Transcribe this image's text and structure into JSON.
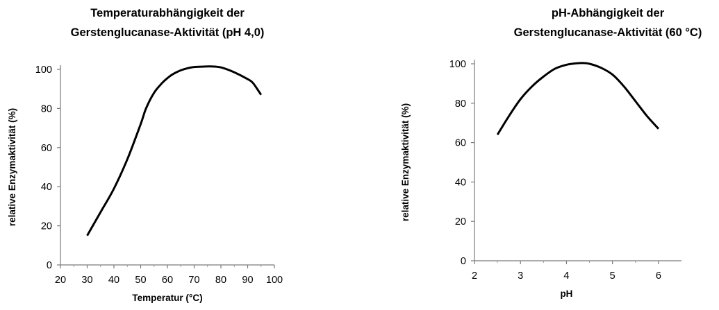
{
  "chart_data": [
    {
      "type": "line",
      "title_lines": [
        "Temperaturabhängigkeit der",
        "Gerstenglucanase-Aktivität (pH 4,0)"
      ],
      "xlabel": "Temperatur (°C)",
      "ylabel": "relative Enzymaktivität (%)",
      "xlim": [
        20,
        100
      ],
      "ylim": [
        0,
        100
      ],
      "xticks": [
        20,
        30,
        40,
        50,
        60,
        70,
        80,
        90,
        100
      ],
      "xminor": [
        25,
        35,
        45,
        55,
        65,
        75,
        85,
        95
      ],
      "yticks": [
        0,
        20,
        40,
        60,
        80,
        100
      ],
      "grid": false,
      "series": [
        {
          "x": [
            30,
            35,
            40,
            45,
            50,
            52,
            55,
            58,
            60,
            62,
            65,
            68,
            70,
            73,
            76,
            80,
            85,
            90,
            92,
            95
          ],
          "y": [
            15,
            27,
            39,
            54,
            72,
            80,
            88,
            93,
            95.5,
            97.5,
            99.5,
            100.7,
            101.2,
            101.4,
            101.5,
            101,
            98.5,
            95,
            93,
            87
          ]
        }
      ]
    },
    {
      "type": "line",
      "title_lines": [
        "pH-Abhängigkeit der",
        "Gerstenglucanase-Aktivität (60 °C)"
      ],
      "xlabel": "pH",
      "ylabel": "relative Enzymaktivität (%)",
      "xlim": [
        2,
        6.5
      ],
      "ylim": [
        0,
        100
      ],
      "xticks": [
        2,
        3,
        4,
        5,
        6
      ],
      "xminor": [
        2.5,
        3.5,
        4.5,
        5.5
      ],
      "yticks": [
        0,
        20,
        40,
        60,
        80,
        100
      ],
      "grid": false,
      "series": [
        {
          "x": [
            2.5,
            2.75,
            3,
            3.25,
            3.5,
            3.75,
            4,
            4.2,
            4.35,
            4.5,
            4.75,
            5,
            5.25,
            5.5,
            5.75,
            6
          ],
          "y": [
            64,
            73.5,
            82,
            88.5,
            93.5,
            97.5,
            99.5,
            100.2,
            100.4,
            100,
            98,
            94.5,
            88.5,
            81,
            73.5,
            67
          ]
        }
      ]
    }
  ]
}
